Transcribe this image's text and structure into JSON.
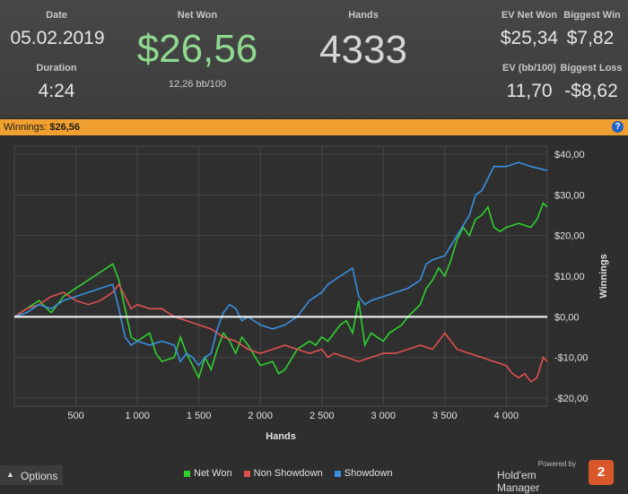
{
  "stats": {
    "date_label": "Date",
    "date_value": "05.02.2019",
    "duration_label": "Duration",
    "duration_value": "4:24",
    "net_won_label": "Net Won",
    "net_won_value": "$26,56",
    "net_won_sub": "12,26 bb/100",
    "hands_label": "Hands",
    "hands_value": "4333",
    "ev_net_won_label": "EV Net Won",
    "ev_net_won_value": "$25,34",
    "biggest_win_label": "Biggest Win",
    "biggest_win_value": "$7,82",
    "ev_bb_label": "EV (bb/100)",
    "ev_bb_value": "11,70",
    "biggest_loss_label": "Biggest Loss",
    "biggest_loss_value": "-$8,62"
  },
  "winnings_bar": {
    "label": "Winnings:",
    "value": "$26,56",
    "help_icon": "help-icon"
  },
  "chart_data": {
    "type": "line",
    "xlabel": "Hands",
    "ylabel": "Winnings",
    "xlim": [
      0,
      4333
    ],
    "ylim": [
      -22,
      42
    ],
    "x_ticks": [
      500,
      1000,
      1500,
      2000,
      2500,
      3000,
      3500,
      4000
    ],
    "x_tick_labels": [
      "500",
      "1 000",
      "1 500",
      "2 000",
      "2 500",
      "3 000",
      "3 500",
      "4 000"
    ],
    "y_ticks": [
      -20,
      -10,
      0,
      10,
      20,
      30,
      40
    ],
    "y_tick_labels": [
      "-$20,00",
      "-$10,00",
      "$0,00",
      "$10,00",
      "$20,00",
      "$30,00",
      "$40,00"
    ],
    "grid": true,
    "legend_position": "bottom",
    "series": [
      {
        "name": "Net Won",
        "color": "#2fd12f",
        "points": [
          [
            0,
            0
          ],
          [
            100,
            2
          ],
          [
            200,
            4
          ],
          [
            300,
            1
          ],
          [
            400,
            5
          ],
          [
            500,
            7
          ],
          [
            600,
            9
          ],
          [
            700,
            11
          ],
          [
            800,
            13
          ],
          [
            850,
            9
          ],
          [
            900,
            2
          ],
          [
            950,
            -5
          ],
          [
            1000,
            -6
          ],
          [
            1050,
            -5
          ],
          [
            1100,
            -4
          ],
          [
            1150,
            -9
          ],
          [
            1200,
            -11
          ],
          [
            1300,
            -10
          ],
          [
            1350,
            -5
          ],
          [
            1400,
            -9
          ],
          [
            1450,
            -12
          ],
          [
            1500,
            -15
          ],
          [
            1550,
            -10
          ],
          [
            1600,
            -13
          ],
          [
            1650,
            -8
          ],
          [
            1700,
            -4
          ],
          [
            1750,
            -6
          ],
          [
            1800,
            -9
          ],
          [
            1850,
            -5
          ],
          [
            1900,
            -7
          ],
          [
            2000,
            -12
          ],
          [
            2100,
            -11
          ],
          [
            2150,
            -14
          ],
          [
            2200,
            -13
          ],
          [
            2300,
            -8
          ],
          [
            2400,
            -6
          ],
          [
            2450,
            -7
          ],
          [
            2500,
            -5
          ],
          [
            2550,
            -6
          ],
          [
            2600,
            -4
          ],
          [
            2650,
            -2
          ],
          [
            2700,
            -1
          ],
          [
            2750,
            -4
          ],
          [
            2800,
            4
          ],
          [
            2850,
            -7
          ],
          [
            2900,
            -4
          ],
          [
            3000,
            -6
          ],
          [
            3050,
            -4
          ],
          [
            3100,
            -3
          ],
          [
            3150,
            -2
          ],
          [
            3200,
            0
          ],
          [
            3300,
            3
          ],
          [
            3350,
            7
          ],
          [
            3400,
            9
          ],
          [
            3450,
            12
          ],
          [
            3500,
            10
          ],
          [
            3550,
            14
          ],
          [
            3600,
            19
          ],
          [
            3650,
            22
          ],
          [
            3700,
            20
          ],
          [
            3750,
            24
          ],
          [
            3800,
            25
          ],
          [
            3850,
            27
          ],
          [
            3900,
            22
          ],
          [
            3950,
            21
          ],
          [
            4000,
            22
          ],
          [
            4100,
            23
          ],
          [
            4200,
            22
          ],
          [
            4250,
            24
          ],
          [
            4300,
            28
          ],
          [
            4333,
            27
          ]
        ]
      },
      {
        "name": "Non Showdown",
        "color": "#e05050",
        "points": [
          [
            0,
            0
          ],
          [
            100,
            2
          ],
          [
            200,
            3
          ],
          [
            300,
            5
          ],
          [
            400,
            6
          ],
          [
            500,
            4
          ],
          [
            600,
            3
          ],
          [
            700,
            4
          ],
          [
            800,
            6
          ],
          [
            850,
            8
          ],
          [
            900,
            5
          ],
          [
            950,
            2
          ],
          [
            1000,
            3
          ],
          [
            1100,
            2
          ],
          [
            1200,
            2
          ],
          [
            1300,
            0
          ],
          [
            1400,
            -1
          ],
          [
            1500,
            -2
          ],
          [
            1600,
            -3
          ],
          [
            1700,
            -5
          ],
          [
            1800,
            -6
          ],
          [
            1900,
            -8
          ],
          [
            2000,
            -9
          ],
          [
            2100,
            -8
          ],
          [
            2200,
            -7
          ],
          [
            2300,
            -8
          ],
          [
            2400,
            -9
          ],
          [
            2500,
            -8
          ],
          [
            2550,
            -10
          ],
          [
            2600,
            -9
          ],
          [
            2700,
            -10
          ],
          [
            2800,
            -11
          ],
          [
            2900,
            -10
          ],
          [
            3000,
            -9
          ],
          [
            3100,
            -9
          ],
          [
            3200,
            -8
          ],
          [
            3300,
            -7
          ],
          [
            3400,
            -8
          ],
          [
            3450,
            -6
          ],
          [
            3500,
            -4
          ],
          [
            3550,
            -6
          ],
          [
            3600,
            -8
          ],
          [
            3700,
            -9
          ],
          [
            3800,
            -10
          ],
          [
            3900,
            -11
          ],
          [
            4000,
            -12
          ],
          [
            4050,
            -14
          ],
          [
            4100,
            -15
          ],
          [
            4150,
            -14
          ],
          [
            4200,
            -16
          ],
          [
            4250,
            -15
          ],
          [
            4300,
            -10
          ],
          [
            4333,
            -11
          ]
        ]
      },
      {
        "name": "Showdown",
        "color": "#3a8fe0",
        "points": [
          [
            0,
            0
          ],
          [
            100,
            1
          ],
          [
            200,
            3
          ],
          [
            300,
            2
          ],
          [
            400,
            4
          ],
          [
            500,
            5
          ],
          [
            600,
            6
          ],
          [
            700,
            7
          ],
          [
            800,
            8
          ],
          [
            850,
            2
          ],
          [
            900,
            -5
          ],
          [
            950,
            -7
          ],
          [
            1000,
            -6
          ],
          [
            1100,
            -7
          ],
          [
            1200,
            -6
          ],
          [
            1300,
            -7
          ],
          [
            1350,
            -11
          ],
          [
            1400,
            -9
          ],
          [
            1450,
            -10
          ],
          [
            1500,
            -12
          ],
          [
            1550,
            -10
          ],
          [
            1600,
            -9
          ],
          [
            1650,
            -3
          ],
          [
            1700,
            1
          ],
          [
            1750,
            3
          ],
          [
            1800,
            2
          ],
          [
            1850,
            -1
          ],
          [
            1900,
            0
          ],
          [
            2000,
            -2
          ],
          [
            2100,
            -3
          ],
          [
            2200,
            -2
          ],
          [
            2300,
            0
          ],
          [
            2400,
            4
          ],
          [
            2500,
            6
          ],
          [
            2550,
            8
          ],
          [
            2600,
            9
          ],
          [
            2650,
            10
          ],
          [
            2700,
            11
          ],
          [
            2750,
            12
          ],
          [
            2800,
            5
          ],
          [
            2850,
            3
          ],
          [
            2900,
            4
          ],
          [
            3000,
            5
          ],
          [
            3100,
            6
          ],
          [
            3200,
            7
          ],
          [
            3300,
            9
          ],
          [
            3350,
            13
          ],
          [
            3400,
            14
          ],
          [
            3500,
            15
          ],
          [
            3600,
            20
          ],
          [
            3700,
            25
          ],
          [
            3750,
            30
          ],
          [
            3800,
            31
          ],
          [
            3850,
            34
          ],
          [
            3900,
            37
          ],
          [
            4000,
            37
          ],
          [
            4100,
            38
          ],
          [
            4200,
            37
          ],
          [
            4333,
            36
          ]
        ]
      }
    ]
  },
  "footer": {
    "options_label": "Options",
    "legend": [
      {
        "label": "Net Won",
        "color": "#2fd12f"
      },
      {
        "label": "Non Showdown",
        "color": "#e05050"
      },
      {
        "label": "Showdown",
        "color": "#3a8fe0"
      }
    ],
    "powered_by": "Powered by",
    "brand_name": "Hold'em Manager",
    "brand_mark": "2"
  }
}
